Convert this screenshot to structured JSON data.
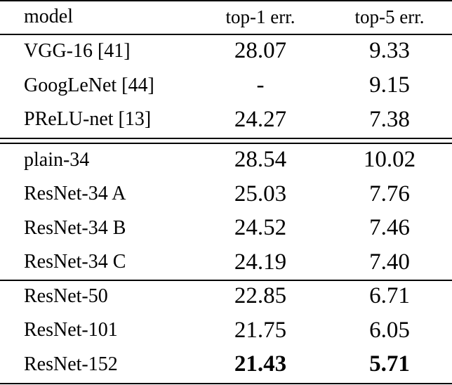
{
  "table": {
    "headers": {
      "model": "model",
      "top1": "top-1 err.",
      "top5": "top-5 err."
    },
    "groups": [
      {
        "rows": [
          {
            "model": "VGG-16 [41]",
            "top1": "28.07",
            "top5": "9.33"
          },
          {
            "model": "GoogLeNet [44]",
            "top1": "-",
            "top5": "9.15"
          },
          {
            "model": "PReLU-net [13]",
            "top1": "24.27",
            "top5": "7.38"
          }
        ]
      },
      {
        "rows": [
          {
            "model": "plain-34",
            "top1": "28.54",
            "top5": "10.02"
          },
          {
            "model": "ResNet-34 A",
            "top1": "25.03",
            "top5": "7.76"
          },
          {
            "model": "ResNet-34 B",
            "top1": "24.52",
            "top5": "7.46"
          },
          {
            "model": "ResNet-34 C",
            "top1": "24.19",
            "top5": "7.40"
          }
        ]
      },
      {
        "rows": [
          {
            "model": "ResNet-50",
            "top1": "22.85",
            "top5": "6.71"
          },
          {
            "model": "ResNet-101",
            "top1": "21.75",
            "top5": "6.05"
          },
          {
            "model": "ResNet-152",
            "top1": "21.43",
            "top5": "5.71"
          }
        ]
      }
    ]
  }
}
